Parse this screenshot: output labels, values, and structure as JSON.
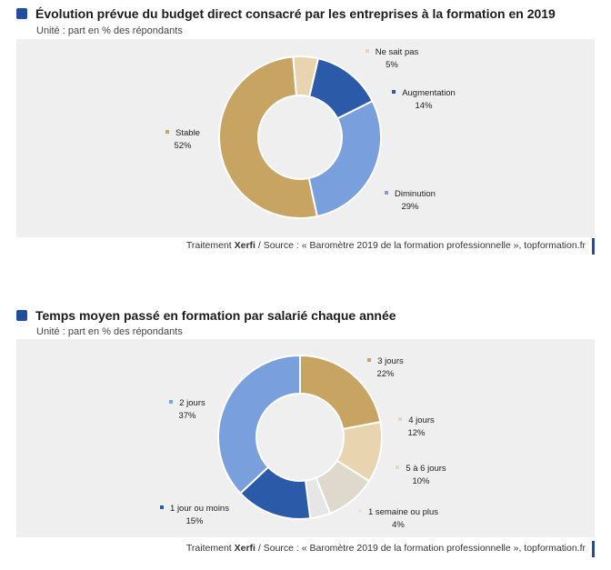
{
  "charts": [
    {
      "title": "Évolution prévue du budget direct consacré par les entreprises à la formation en 2019",
      "subtitle": "Unité : part en % des répondants",
      "source_prefix": "Traitement ",
      "source_brand": "Xerfi",
      "source_rest": " / Source : « Baromètre 2019 de la formation professionnelle », topformation.fr"
    },
    {
      "title": "Temps moyen passé en formation par salarié chaque année",
      "subtitle": "Unité : part en % des répondants",
      "source_prefix": "Traitement ",
      "source_brand": "Xerfi",
      "source_rest": " / Source : « Baromètre 2019 de la formation professionnelle », topformation.fr"
    }
  ],
  "chart_data": [
    {
      "type": "pie",
      "donut": true,
      "unit": "%",
      "slices": [
        {
          "label": "Ne sait pas",
          "value": 5,
          "value_label": "5%",
          "color": "#e8d5b0"
        },
        {
          "label": "Augmentation",
          "value": 14,
          "value_label": "14%",
          "color": "#2a5aa8"
        },
        {
          "label": "Diminution",
          "value": 29,
          "value_label": "29%",
          "color": "#79a0dc"
        },
        {
          "label": "Stable",
          "value": 52,
          "value_label": "52%",
          "color": "#c8a462"
        }
      ]
    },
    {
      "type": "pie",
      "donut": true,
      "unit": "%",
      "slices": [
        {
          "label": "3 jours",
          "value": 22,
          "value_label": "22%",
          "color": "#c8a462"
        },
        {
          "label": "4 jours",
          "value": 12,
          "value_label": "12%",
          "color": "#e8d5b0"
        },
        {
          "label": "5 à 6 jours",
          "value": 10,
          "value_label": "10%",
          "color": "#dfd8cc"
        },
        {
          "label": "1 semaine ou plus",
          "value": 4,
          "value_label": "4%",
          "color": "#e6e6e6"
        },
        {
          "label": "1 jour ou moins",
          "value": 15,
          "value_label": "15%",
          "color": "#2a5aa8"
        },
        {
          "label": "2 jours",
          "value": 37,
          "value_label": "37%",
          "color": "#79a0dc"
        }
      ]
    }
  ]
}
